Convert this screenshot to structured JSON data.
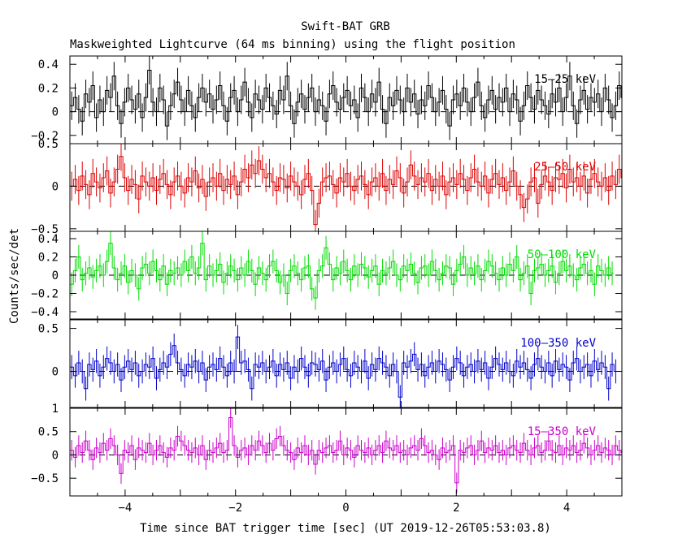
{
  "chart_data": {
    "type": "line",
    "title": "Swift-BAT GRB",
    "subtitle": "Maskweighted Lightcurve (64 ms binning) using the flight position",
    "xlabel": "Time since BAT trigger time [sec] (UT 2019-12-26T05:53:03.8)",
    "ylabel": "Counts/sec/det",
    "xlim": [
      -5,
      5
    ],
    "x_ticks": [
      -4,
      -2,
      0,
      2,
      4
    ],
    "x_tick_labels": [
      "−4",
      "−2",
      "0",
      "2",
      "4"
    ],
    "bin_width": 0.064,
    "grid": false,
    "panels": [
      {
        "name": "15–25 keV",
        "color": "#000000",
        "ylim": [
          -0.27,
          0.47
        ],
        "y_ticks": [
          -0.2,
          0,
          0.2,
          0.4
        ],
        "y_tick_labels": [
          "−0.2",
          "0",
          "0.2",
          "0.4"
        ],
        "error": 0.12,
        "values": [
          0.05,
          0.12,
          0.02,
          -0.08,
          0.15,
          0.08,
          0.22,
          -0.05,
          0.1,
          0.0,
          0.18,
          0.12,
          0.3,
          0.05,
          -0.1,
          0.08,
          0.2,
          0.1,
          0.02,
          0.15,
          -0.05,
          0.12,
          0.35,
          0.08,
          0.0,
          0.2,
          0.1,
          -0.12,
          0.05,
          0.15,
          0.25,
          0.1,
          0.0,
          0.18,
          0.05,
          -0.05,
          0.12,
          0.2,
          0.08,
          0.15,
          0.02,
          0.1,
          0.22,
          0.05,
          -0.08,
          0.12,
          0.18,
          0.0,
          0.1,
          0.25,
          0.08,
          -0.05,
          0.15,
          0.1,
          0.02,
          0.2,
          0.12,
          0.05,
          -0.02,
          0.18,
          0.1,
          0.3,
          0.05,
          -0.1,
          0.08,
          0.15,
          0.02,
          0.12,
          0.2,
          0.0,
          0.1,
          0.05,
          -0.08,
          0.15,
          0.22,
          0.08,
          0.02,
          0.12,
          0.18,
          0.05,
          0.1,
          -0.05,
          0.2,
          0.12,
          0.0,
          0.15,
          0.08,
          0.25,
          0.02,
          -0.1,
          0.12,
          0.05,
          0.18,
          0.1,
          0.0,
          0.2,
          0.08,
          0.15,
          -0.02,
          0.1,
          0.05,
          0.22,
          0.12,
          0.0,
          0.08,
          0.18,
          0.02,
          -0.12,
          0.1,
          0.15,
          0.05,
          0.2,
          0.08,
          0.0,
          0.12,
          0.25,
          0.05,
          -0.05,
          0.1,
          0.18,
          0.02,
          0.12,
          0.08,
          0.2,
          0.0,
          0.15,
          0.1,
          -0.08,
          0.05,
          0.22,
          0.12,
          0.02,
          0.18,
          0.1,
          0.05,
          -0.02,
          0.15,
          0.08,
          0.2,
          0.0,
          0.12,
          0.3,
          0.05,
          -0.1,
          0.1,
          0.18,
          0.02,
          0.12,
          0.08,
          0.15,
          0.0,
          0.2,
          0.1,
          -0.05,
          0.05,
          0.22,
          0.12,
          0.02,
          0.08
        ]
      },
      {
        "name": "25–50 keV",
        "color": "#dd0000",
        "ylim": [
          -0.53,
          0.5
        ],
        "y_ticks": [
          -0.5,
          0,
          0.5
        ],
        "y_tick_labels": [
          "−0.5",
          "0",
          "0.5"
        ],
        "error": 0.17,
        "values": [
          0.0,
          0.08,
          -0.05,
          0.12,
          0.02,
          -0.1,
          0.15,
          0.05,
          -0.02,
          0.1,
          0.18,
          -0.08,
          0.05,
          0.2,
          0.35,
          0.1,
          -0.05,
          0.08,
          0.02,
          -0.15,
          0.12,
          0.05,
          0.0,
          0.1,
          -0.05,
          0.08,
          0.15,
          0.02,
          -0.1,
          0.05,
          0.12,
          0.0,
          -0.08,
          0.1,
          0.05,
          0.18,
          -0.02,
          0.08,
          -0.12,
          0.05,
          0.1,
          0.0,
          0.15,
          -0.05,
          0.08,
          0.02,
          0.12,
          -0.1,
          0.05,
          0.2,
          0.1,
          0.25,
          0.15,
          0.3,
          0.2,
          0.1,
          0.15,
          0.05,
          -0.05,
          0.1,
          0.08,
          -0.02,
          0.12,
          0.05,
          0.0,
          -0.1,
          0.08,
          0.15,
          -0.05,
          -0.45,
          -0.2,
          0.05,
          0.1,
          0.12,
          0.02,
          -0.08,
          0.1,
          0.05,
          0.15,
          0.0,
          -0.05,
          0.08,
          0.12,
          0.02,
          -0.1,
          0.05,
          0.1,
          0.0,
          0.15,
          -0.05,
          0.08,
          0.02,
          0.18,
          0.1,
          -0.08,
          0.05,
          0.25,
          0.12,
          0.02,
          0.1,
          0.05,
          0.15,
          -0.05,
          0.08,
          0.0,
          0.12,
          -0.1,
          0.05,
          0.1,
          0.02,
          0.15,
          0.08,
          -0.05,
          0.1,
          0.2,
          0.05,
          0.0,
          0.12,
          -0.08,
          0.08,
          0.15,
          0.02,
          0.1,
          -0.05,
          0.05,
          0.18,
          0.0,
          -0.1,
          -0.25,
          -0.15,
          0.05,
          0.1,
          -0.2,
          0.02,
          0.12,
          0.05,
          -0.05,
          0.1,
          0.08,
          0.15,
          -0.02,
          0.2,
          0.05,
          0.1,
          0.0,
          0.12,
          -0.08,
          0.08,
          0.15,
          0.05,
          0.0,
          0.1,
          -0.05,
          0.12,
          0.02,
          0.2,
          0.1,
          0.05,
          0.0,
          0.15
        ]
      },
      {
        "name": "50–100 keV",
        "color": "#00dd00",
        "ylim": [
          -0.48,
          0.48
        ],
        "y_ticks": [
          -0.4,
          -0.2,
          0,
          0.2,
          0.4
        ],
        "y_tick_labels": [
          "−0.4",
          "−0.2",
          "0",
          "0.2",
          "0.4"
        ],
        "error": 0.13,
        "values": [
          -0.1,
          0.05,
          0.2,
          -0.05,
          0.02,
          0.08,
          -0.02,
          0.05,
          0.1,
          0.0,
          0.15,
          0.35,
          0.08,
          -0.05,
          0.02,
          0.1,
          -0.08,
          0.05,
          0.0,
          -0.15,
          0.08,
          0.12,
          0.02,
          0.15,
          0.05,
          -0.05,
          0.1,
          -0.1,
          0.05,
          0.02,
          0.08,
          0.0,
          0.15,
          0.05,
          0.2,
          0.02,
          0.08,
          0.35,
          -0.05,
          0.1,
          0.0,
          0.05,
          0.12,
          -0.08,
          0.02,
          0.1,
          0.05,
          -0.05,
          0.08,
          0.0,
          0.15,
          0.05,
          -0.1,
          0.08,
          0.02,
          -0.05,
          0.1,
          0.15,
          0.05,
          -0.08,
          0.0,
          -0.2,
          0.05,
          0.1,
          0.02,
          -0.05,
          0.08,
          0.1,
          -0.15,
          -0.25,
          0.05,
          0.1,
          0.3,
          0.12,
          -0.05,
          0.08,
          0.02,
          0.15,
          0.05,
          -0.05,
          0.1,
          0.0,
          0.12,
          0.08,
          -0.02,
          0.05,
          0.1,
          -0.1,
          0.05,
          0.02,
          0.08,
          0.15,
          0.0,
          -0.05,
          0.1,
          0.05,
          0.12,
          0.02,
          -0.08,
          0.08,
          0.1,
          0.0,
          0.15,
          0.05,
          -0.05,
          0.02,
          0.1,
          0.08,
          -0.1,
          0.05,
          0.12,
          0.2,
          0.0,
          0.08,
          0.02,
          0.1,
          -0.05,
          0.05,
          0.15,
          0.1,
          0.02,
          -0.05,
          0.08,
          0.0,
          0.12,
          0.05,
          0.2,
          -0.05,
          0.02,
          0.1,
          -0.2,
          0.05,
          0.08,
          0.12,
          0.0,
          0.05,
          0.1,
          -0.08,
          0.02,
          0.15,
          0.05,
          0.1,
          0.0,
          -0.05,
          0.08,
          0.12,
          0.02,
          0.05,
          -0.1,
          0.1,
          0.05,
          0.0,
          0.08,
          0.02
        ]
      },
      {
        "name": "100–350 keV",
        "color": "#0000cc",
        "ylim": [
          -0.42,
          0.6
        ],
        "y_ticks": [
          0,
          0.5
        ],
        "y_tick_labels": [
          "0",
          "0.5"
        ],
        "error": 0.14,
        "values": [
          0.05,
          -0.05,
          0.1,
          0.0,
          -0.2,
          0.08,
          0.02,
          0.12,
          -0.05,
          0.05,
          0.15,
          0.1,
          0.0,
          0.08,
          -0.1,
          0.05,
          0.12,
          0.02,
          0.1,
          -0.05,
          0.0,
          0.08,
          0.05,
          0.15,
          -0.08,
          0.02,
          0.1,
          0.05,
          0.2,
          0.3,
          0.1,
          0.02,
          -0.05,
          0.08,
          0.05,
          0.12,
          0.0,
          0.1,
          -0.1,
          0.05,
          0.08,
          0.02,
          0.15,
          0.05,
          -0.05,
          0.1,
          0.0,
          0.4,
          0.1,
          0.12,
          0.02,
          -0.2,
          0.08,
          0.05,
          0.1,
          0.0,
          0.05,
          0.12,
          -0.05,
          0.08,
          0.02,
          0.1,
          -0.08,
          0.05,
          0.0,
          0.15,
          0.05,
          -0.05,
          0.1,
          0.08,
          0.02,
          0.12,
          -0.1,
          0.05,
          0.1,
          0.0,
          0.08,
          0.15,
          0.02,
          -0.05,
          0.1,
          0.05,
          0.0,
          0.12,
          -0.08,
          0.08,
          0.02,
          0.15,
          0.1,
          0.05,
          -0.05,
          0.08,
          0.0,
          -0.3,
          0.1,
          0.05,
          0.12,
          0.2,
          0.02,
          0.08,
          -0.05,
          0.05,
          0.1,
          0.0,
          0.12,
          0.08,
          0.02,
          -0.1,
          0.05,
          0.15,
          0.1,
          -0.05,
          0.05,
          0.08,
          0.0,
          0.12,
          0.02,
          0.1,
          -0.08,
          0.05,
          0.15,
          0.08,
          0.02,
          0.1,
          0.0,
          -0.05,
          0.12,
          0.05,
          0.1,
          0.02,
          -0.08,
          0.08,
          0.15,
          0.05,
          0.0,
          0.1,
          -0.05,
          0.12,
          0.02,
          0.08,
          0.05,
          -0.1,
          0.1,
          0.15,
          0.0,
          0.05,
          0.08,
          -0.05,
          0.12,
          0.02,
          0.1,
          0.05,
          -0.2,
          0.08,
          0.0
        ]
      },
      {
        "name": "15–350 keV",
        "color": "#cc00cc",
        "ylim": [
          -0.88,
          1.0
        ],
        "y_ticks": [
          -0.5,
          0,
          0.5,
          1
        ],
        "y_tick_labels": [
          "−0.5",
          "0",
          "0.5",
          "1"
        ],
        "error": 0.22,
        "values": [
          0.1,
          -0.05,
          0.2,
          0.05,
          0.3,
          0.1,
          -0.1,
          0.15,
          0.05,
          0.25,
          0.1,
          0.35,
          0.2,
          0.0,
          -0.4,
          0.1,
          0.05,
          0.2,
          -0.1,
          0.15,
          0.1,
          0.05,
          0.25,
          0.0,
          0.1,
          0.2,
          0.05,
          -0.05,
          0.15,
          0.1,
          0.4,
          0.3,
          0.2,
          0.1,
          0.05,
          0.15,
          0.0,
          0.2,
          -0.1,
          0.1,
          0.05,
          0.15,
          0.25,
          0.05,
          0.1,
          0.8,
          0.2,
          -0.05,
          0.1,
          0.15,
          0.0,
          0.2,
          0.1,
          0.3,
          0.2,
          0.05,
          0.25,
          0.1,
          0.35,
          0.4,
          0.2,
          0.1,
          0.05,
          -0.1,
          0.15,
          0.05,
          0.2,
          0.0,
          0.1,
          -0.2,
          0.1,
          0.05,
          0.15,
          0.2,
          0.05,
          0.1,
          0.3,
          0.0,
          0.15,
          0.1,
          -0.05,
          0.2,
          0.1,
          0.05,
          0.15,
          0.0,
          0.1,
          0.2,
          0.05,
          0.3,
          0.15,
          0.1,
          0.2,
          0.05,
          0.1,
          0.0,
          0.15,
          0.2,
          0.1,
          0.35,
          0.2,
          0.05,
          0.1,
          0.0,
          -0.1,
          0.15,
          0.05,
          0.1,
          0.2,
          -0.6,
          0.1,
          0.05,
          0.15,
          0.2,
          0.0,
          0.1,
          0.3,
          0.05,
          0.15,
          0.1,
          0.2,
          0.05,
          0.1,
          0.0,
          0.15,
          0.2,
          0.1,
          0.05,
          0.25,
          0.1,
          0.0,
          0.15,
          0.2,
          0.05,
          0.1,
          0.3,
          0.1,
          0.05,
          0.2,
          0.0,
          0.15,
          0.1,
          0.2,
          0.05,
          0.1,
          0.25,
          0.15,
          0.0,
          0.1,
          0.2,
          0.05,
          0.15,
          0.1,
          0.0,
          0.2,
          0.1,
          0.05
        ]
      }
    ]
  }
}
